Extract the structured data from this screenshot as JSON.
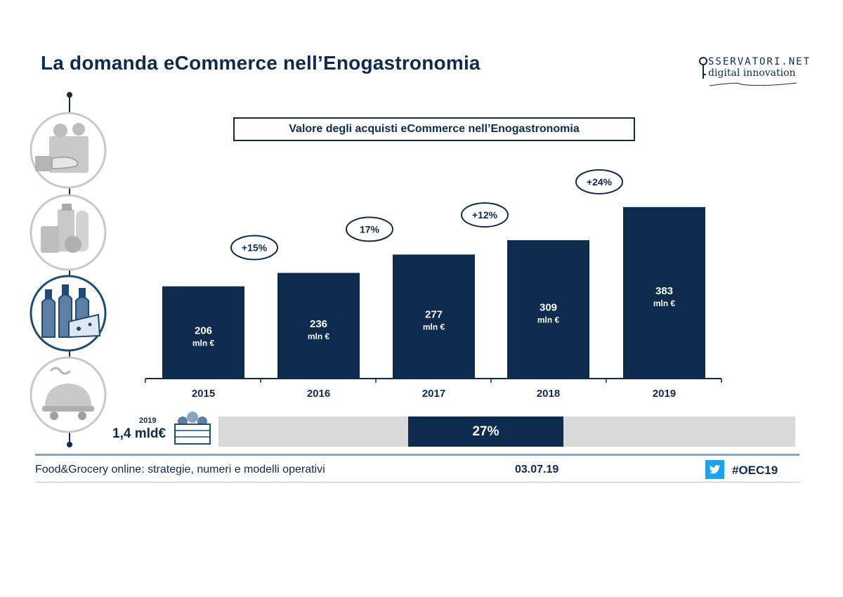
{
  "page": {
    "title": "La domanda eCommerce nell’Enogastronomia",
    "logo_line1": "SSERVATORI.NET",
    "logo_line2": "digital innovation"
  },
  "timeline_icons": [
    "grocery-bag-hand-icon",
    "grocery-products-icon",
    "wine-cheese-icon",
    "food-delivery-icon"
  ],
  "chart_data": {
    "type": "bar",
    "title": "Valore degli acquisti eCommerce nell’Enogastronomia",
    "categories": [
      "2015",
      "2016",
      "2017",
      "2018",
      "2019"
    ],
    "values": [
      206,
      236,
      277,
      309,
      383
    ],
    "value_labels": [
      "206",
      "236",
      "277",
      "309",
      "383"
    ],
    "unit_label": "mln €",
    "growth_labels": [
      "+15%",
      "17%",
      "+12%",
      "+24%"
    ],
    "bar_color": "#0d2b4e",
    "xlabel": "",
    "ylabel": ""
  },
  "share": {
    "year": "2019",
    "total": "1,4 mld€",
    "percent_label": "27%",
    "fraction": 0.27,
    "track_color": "#d9d9d9",
    "fill_color": "#0d2b4e"
  },
  "footer": {
    "left": "Food&Grocery online: strategie, numeri e modelli operativi",
    "date": "03.07.19",
    "hashtag": "#OEC19",
    "twitter_color": "#1da1f2"
  }
}
